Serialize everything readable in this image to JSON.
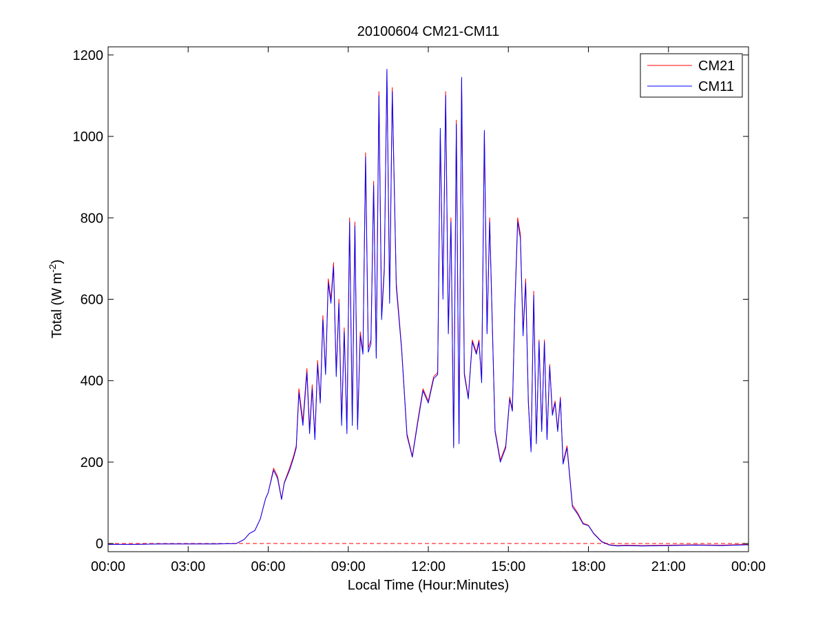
{
  "chart_data": {
    "type": "line",
    "title": "20100604 CM21-CM11",
    "xlabel": "Local Time (Hour:Minutes)",
    "ylabel_main": "Total (W m",
    "ylabel_sup": "-2",
    "ylabel_close": ")",
    "xlim": [
      0,
      24
    ],
    "ylim": [
      -20,
      1220
    ],
    "x_ticks": [
      0,
      3,
      6,
      9,
      12,
      15,
      18,
      21,
      24
    ],
    "x_tick_labels": [
      "00:00",
      "03:00",
      "06:00",
      "09:00",
      "12:00",
      "15:00",
      "18:00",
      "21:00",
      "00:00"
    ],
    "y_ticks": [
      0,
      200,
      400,
      600,
      800,
      1000,
      1200
    ],
    "y_tick_labels": [
      "0",
      "200",
      "400",
      "600",
      "800",
      "1000",
      "1200"
    ],
    "grid": false,
    "legend_position": "top-right",
    "zero_reference_line": {
      "y": 0,
      "style": "dashed",
      "color": "#ff0000"
    },
    "series": [
      {
        "name": "CM21",
        "color": "#ff0000",
        "x": [
          0,
          1,
          2,
          3,
          4,
          4.8,
          5.1,
          5.3,
          5.5,
          5.7,
          5.9,
          6.0,
          6.2,
          6.35,
          6.5,
          6.6,
          6.8,
          6.95,
          7.05,
          7.15,
          7.3,
          7.45,
          7.55,
          7.65,
          7.75,
          7.85,
          7.95,
          8.05,
          8.15,
          8.25,
          8.35,
          8.45,
          8.55,
          8.65,
          8.75,
          8.85,
          8.95,
          9.05,
          9.15,
          9.25,
          9.35,
          9.45,
          9.55,
          9.65,
          9.75,
          9.85,
          9.95,
          10.05,
          10.15,
          10.25,
          10.35,
          10.45,
          10.55,
          10.65,
          10.8,
          11.0,
          11.2,
          11.4,
          11.6,
          11.8,
          12.0,
          12.2,
          12.35,
          12.45,
          12.55,
          12.65,
          12.75,
          12.85,
          12.95,
          13.05,
          13.15,
          13.25,
          13.35,
          13.5,
          13.65,
          13.8,
          13.9,
          14.0,
          14.1,
          14.2,
          14.3,
          14.5,
          14.7,
          14.9,
          15.05,
          15.15,
          15.25,
          15.35,
          15.45,
          15.55,
          15.65,
          15.75,
          15.85,
          15.95,
          16.05,
          16.15,
          16.25,
          16.35,
          16.45,
          16.55,
          16.65,
          16.75,
          16.85,
          16.95,
          17.05,
          17.2,
          17.4,
          17.6,
          17.8,
          18.0,
          18.2,
          18.5,
          18.8,
          19.1,
          19.4,
          20,
          21,
          22,
          23,
          24
        ],
        "values": [
          -2,
          -2,
          -1,
          -1,
          -1,
          0,
          10,
          25,
          32,
          60,
          110,
          125,
          185,
          165,
          110,
          150,
          185,
          215,
          240,
          380,
          300,
          430,
          280,
          390,
          260,
          450,
          350,
          560,
          420,
          650,
          600,
          690,
          420,
          600,
          300,
          530,
          280,
          800,
          300,
          790,
          290,
          520,
          470,
          960,
          480,
          500,
          890,
          460,
          1110,
          560,
          680,
          1160,
          600,
          1120,
          640,
          480,
          270,
          215,
          300,
          380,
          350,
          410,
          420,
          1000,
          610,
          1110,
          520,
          800,
          240,
          1040,
          250,
          1140,
          420,
          360,
          500,
          470,
          500,
          400,
          1010,
          520,
          800,
          280,
          205,
          240,
          360,
          330,
          600,
          800,
          760,
          520,
          650,
          350,
          230,
          620,
          250,
          500,
          280,
          500,
          260,
          440,
          320,
          350,
          280,
          360,
          200,
          240,
          95,
          75,
          50,
          45,
          25,
          5,
          -3,
          -5,
          -4,
          -5,
          -4,
          -3,
          -4,
          -2
        ]
      },
      {
        "name": "CM11",
        "color": "#0000ff",
        "x": [
          0,
          1,
          2,
          3,
          4,
          4.8,
          5.1,
          5.3,
          5.5,
          5.7,
          5.9,
          6.0,
          6.2,
          6.35,
          6.5,
          6.6,
          6.8,
          6.95,
          7.05,
          7.15,
          7.3,
          7.45,
          7.55,
          7.65,
          7.75,
          7.85,
          7.95,
          8.05,
          8.15,
          8.25,
          8.35,
          8.45,
          8.55,
          8.65,
          8.75,
          8.85,
          8.95,
          9.05,
          9.15,
          9.25,
          9.35,
          9.45,
          9.55,
          9.65,
          9.75,
          9.85,
          9.95,
          10.05,
          10.15,
          10.25,
          10.35,
          10.45,
          10.55,
          10.65,
          10.8,
          11.0,
          11.2,
          11.4,
          11.6,
          11.8,
          12.0,
          12.2,
          12.35,
          12.45,
          12.55,
          12.65,
          12.75,
          12.85,
          12.95,
          13.05,
          13.15,
          13.25,
          13.35,
          13.5,
          13.65,
          13.8,
          13.9,
          14.0,
          14.1,
          14.2,
          14.3,
          14.5,
          14.7,
          14.9,
          15.05,
          15.15,
          15.25,
          15.35,
          15.45,
          15.55,
          15.65,
          15.75,
          15.85,
          15.95,
          16.05,
          16.15,
          16.25,
          16.35,
          16.45,
          16.55,
          16.65,
          16.75,
          16.85,
          16.95,
          17.05,
          17.2,
          17.4,
          17.6,
          17.8,
          18.0,
          18.2,
          18.5,
          18.8,
          19.1,
          19.4,
          20,
          21,
          22,
          23,
          24
        ],
        "values": [
          -2,
          -2,
          -1,
          -1,
          -1,
          0,
          10,
          25,
          32,
          60,
          110,
          125,
          180,
          160,
          108,
          148,
          180,
          210,
          235,
          370,
          290,
          420,
          270,
          380,
          255,
          440,
          345,
          550,
          415,
          640,
          590,
          680,
          410,
          590,
          290,
          520,
          270,
          790,
          290,
          780,
          280,
          510,
          465,
          950,
          470,
          490,
          880,
          455,
          1100,
          550,
          670,
          1165,
          590,
          1110,
          630,
          475,
          265,
          212,
          295,
          375,
          345,
          405,
          415,
          1020,
          600,
          1100,
          515,
          790,
          235,
          1030,
          245,
          1145,
          415,
          355,
          495,
          465,
          495,
          395,
          1015,
          515,
          790,
          275,
          200,
          235,
          355,
          325,
          590,
          790,
          750,
          510,
          640,
          345,
          225,
          610,
          245,
          495,
          275,
          495,
          255,
          435,
          315,
          345,
          275,
          355,
          195,
          235,
          90,
          72,
          48,
          44,
          24,
          4,
          -4,
          -6,
          -5,
          -6,
          -5,
          -4,
          -5,
          -3
        ]
      }
    ]
  }
}
